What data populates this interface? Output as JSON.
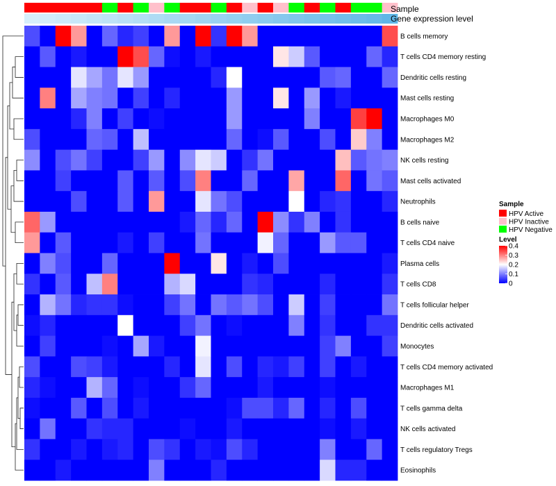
{
  "chart_data": {
    "type": "heatmap",
    "annotation_row_labels": [
      "Sample",
      "Gene expression level"
    ],
    "sample_group": [
      "HPV Active",
      "HPV Active",
      "HPV Active",
      "HPV Active",
      "HPV Active",
      "HPV Negative",
      "HPV Active",
      "HPV Negative",
      "HPV Inactive",
      "HPV Negative",
      "HPV Active",
      "HPV Active",
      "HPV Negative",
      "HPV Active",
      "HPV Inactive",
      "HPV Active",
      "HPV Inactive",
      "HPV Negative",
      "HPV Active",
      "HPV Negative",
      "HPV Active",
      "HPV Negative",
      "HPV Negative",
      "HPV Inactive"
    ],
    "expression_level": [
      0.02,
      0.06,
      0.1,
      0.14,
      0.18,
      0.22,
      0.26,
      0.3,
      0.34,
      0.38,
      0.42,
      0.46,
      0.5,
      0.54,
      0.58,
      0.62,
      0.66,
      0.7,
      0.74,
      0.78,
      0.82,
      0.86,
      0.9,
      0.96
    ],
    "rows": [
      "B cells memory",
      "T cells CD4 memory resting",
      "Dendritic cells resting",
      "Mast cells resting",
      "Macrophages M0",
      "Macrophages M2",
      "NK cells resting",
      "Mast cells activated",
      "Neutrophils",
      "B cells naive",
      "T cells CD4 naive",
      "Plasma cells",
      "T cells CD8",
      "T cells follicular helper",
      "Dendritic cells activated",
      "Monocytes",
      "T cells CD4 memory activated",
      "Macrophages M1",
      "T cells gamma delta",
      "NK cells activated",
      "T cells regulatory  Tregs",
      "Eosinophils"
    ],
    "values": [
      [
        0.06,
        0.0,
        0.4,
        0.28,
        0.0,
        0.08,
        0.03,
        0.05,
        0.0,
        0.28,
        0.0,
        0.4,
        0.04,
        0.4,
        0.28,
        0.0,
        0.0,
        0.0,
        0.0,
        0.0,
        0.0,
        0.0,
        0.0,
        0.34
      ],
      [
        0.0,
        0.07,
        0.0,
        0.02,
        0.0,
        0.0,
        0.4,
        0.34,
        0.08,
        0.01,
        0.0,
        0.02,
        0.0,
        0.0,
        0.0,
        0.0,
        0.22,
        0.16,
        0.07,
        0.0,
        0.0,
        0.0,
        0.08,
        0.03
      ],
      [
        0.0,
        0.0,
        0.0,
        0.18,
        0.13,
        0.09,
        0.18,
        0.12,
        0.0,
        0.0,
        0.0,
        0.0,
        0.03,
        0.2,
        0.0,
        0.0,
        0.0,
        0.0,
        0.0,
        0.07,
        0.08,
        0.0,
        0.0,
        0.08
      ],
      [
        0.0,
        0.3,
        0.0,
        0.13,
        0.1,
        0.09,
        0.0,
        0.05,
        0.0,
        0.03,
        0.0,
        0.0,
        0.0,
        0.12,
        0.0,
        0.0,
        0.22,
        0.0,
        0.12,
        0.0,
        0.02,
        0.0,
        0.0,
        0.0
      ],
      [
        0.0,
        0.0,
        0.0,
        0.03,
        0.1,
        0.0,
        0.05,
        0.0,
        0.01,
        0.0,
        0.0,
        0.0,
        0.0,
        0.12,
        0.0,
        0.0,
        0.0,
        0.0,
        0.1,
        0.0,
        0.0,
        0.35,
        0.4,
        0.0
      ],
      [
        0.06,
        0.0,
        0.0,
        0.0,
        0.08,
        0.07,
        0.0,
        0.15,
        0.0,
        0.0,
        0.0,
        0.0,
        0.0,
        0.08,
        0.0,
        0.01,
        0.07,
        0.0,
        0.0,
        0.06,
        0.0,
        0.24,
        0.1,
        0.0
      ],
      [
        0.11,
        0.0,
        0.06,
        0.09,
        0.05,
        0.0,
        0.0,
        0.05,
        0.12,
        0.0,
        0.11,
        0.18,
        0.16,
        0.0,
        0.04,
        0.09,
        0.0,
        0.0,
        0.0,
        0.0,
        0.25,
        0.07,
        0.09,
        0.1
      ],
      [
        0.0,
        0.0,
        0.05,
        0.0,
        0.0,
        0.0,
        0.07,
        0.0,
        0.07,
        0.0,
        0.06,
        0.3,
        0.0,
        0.0,
        0.08,
        0.0,
        0.0,
        0.27,
        0.0,
        0.0,
        0.32,
        0.0,
        0.09,
        0.07
      ],
      [
        0.0,
        0.0,
        0.0,
        0.06,
        0.0,
        0.0,
        0.07,
        0.0,
        0.28,
        0.0,
        0.0,
        0.18,
        0.09,
        0.06,
        0.0,
        0.0,
        0.0,
        0.2,
        0.0,
        0.03,
        0.04,
        0.0,
        0.0,
        0.03
      ],
      [
        0.32,
        0.12,
        0.0,
        0.0,
        0.0,
        0.0,
        0.0,
        0.0,
        0.0,
        0.0,
        0.02,
        0.08,
        0.03,
        0.08,
        0.0,
        0.4,
        0.11,
        0.04,
        0.1,
        0.0,
        0.04,
        0.0,
        0.0,
        0.0
      ],
      [
        0.28,
        0.0,
        0.07,
        0.0,
        0.0,
        0.0,
        0.02,
        0.0,
        0.05,
        0.0,
        0.0,
        0.09,
        0.0,
        0.0,
        0.0,
        0.19,
        0.08,
        0.0,
        0.0,
        0.12,
        0.07,
        0.07,
        0.0,
        0.0
      ],
      [
        0.0,
        0.1,
        0.06,
        0.0,
        0.0,
        0.08,
        0.0,
        0.0,
        0.0,
        0.4,
        0.0,
        0.0,
        0.22,
        0.0,
        0.02,
        0.0,
        0.06,
        0.0,
        0.0,
        0.0,
        0.0,
        0.0,
        0.0,
        0.02
      ],
      [
        0.04,
        0.0,
        0.07,
        0.0,
        0.15,
        0.3,
        0.0,
        0.0,
        0.0,
        0.14,
        0.17,
        0.0,
        0.0,
        0.0,
        0.04,
        0.03,
        0.0,
        0.0,
        0.0,
        0.03,
        0.0,
        0.0,
        0.0,
        0.04
      ],
      [
        0.0,
        0.14,
        0.09,
        0.03,
        0.04,
        0.04,
        0.01,
        0.0,
        0.0,
        0.05,
        0.09,
        0.0,
        0.09,
        0.07,
        0.09,
        0.06,
        0.0,
        0.16,
        0.0,
        0.05,
        0.0,
        0.0,
        0.0,
        0.09
      ],
      [
        0.01,
        0.03,
        0.0,
        0.0,
        0.0,
        0.0,
        0.2,
        0.0,
        0.0,
        0.0,
        0.05,
        0.09,
        0.0,
        0.01,
        0.0,
        0.0,
        0.0,
        0.1,
        0.0,
        0.04,
        0.0,
        0.0,
        0.04,
        0.04
      ],
      [
        0.0,
        0.05,
        0.0,
        0.0,
        0.0,
        0.01,
        0.0,
        0.13,
        0.02,
        0.0,
        0.0,
        0.19,
        0.0,
        0.0,
        0.0,
        0.0,
        0.0,
        0.0,
        0.0,
        0.05,
        0.1,
        0.0,
        0.0,
        0.05
      ],
      [
        0.06,
        0.0,
        0.0,
        0.06,
        0.05,
        0.02,
        0.0,
        0.0,
        0.0,
        0.03,
        0.0,
        0.18,
        0.0,
        0.06,
        0.0,
        0.03,
        0.02,
        0.05,
        0.0,
        0.05,
        0.0,
        0.02,
        0.0,
        0.0
      ],
      [
        0.03,
        0.01,
        0.0,
        0.0,
        0.14,
        0.08,
        0.0,
        0.01,
        0.0,
        0.0,
        0.04,
        0.08,
        0.0,
        0.0,
        0.0,
        0.02,
        0.0,
        0.0,
        0.0,
        0.01,
        0.0,
        0.0,
        0.0,
        0.0
      ],
      [
        0.01,
        0.0,
        0.0,
        0.07,
        0.0,
        0.06,
        0.0,
        0.02,
        0.0,
        0.0,
        0.0,
        0.0,
        0.0,
        0.01,
        0.06,
        0.06,
        0.03,
        0.08,
        0.0,
        0.03,
        0.0,
        0.06,
        0.0,
        0.0
      ],
      [
        0.0,
        0.09,
        0.0,
        0.0,
        0.04,
        0.03,
        0.03,
        0.0,
        0.0,
        0.0,
        0.01,
        0.0,
        0.0,
        0.02,
        0.0,
        0.0,
        0.0,
        0.0,
        0.0,
        0.01,
        0.0,
        0.02,
        0.0,
        0.0
      ],
      [
        0.04,
        0.0,
        0.0,
        0.02,
        0.0,
        0.02,
        0.03,
        0.0,
        0.06,
        0.04,
        0.0,
        0.02,
        0.01,
        0.06,
        0.03,
        0.0,
        0.0,
        0.0,
        0.0,
        0.1,
        0.0,
        0.0,
        0.08,
        0.0
      ],
      [
        0.0,
        0.0,
        0.02,
        0.0,
        0.0,
        0.0,
        0.0,
        0.0,
        0.1,
        0.0,
        0.0,
        0.0,
        0.03,
        0.0,
        0.0,
        0.0,
        0.0,
        0.0,
        0.0,
        0.17,
        0.03,
        0.03,
        0.0,
        0.0
      ]
    ],
    "legend": {
      "sample_title": "Sample",
      "sample_entries": [
        {
          "label": "HPV Active",
          "color": "#ff0000"
        },
        {
          "label": "HPV Inactive",
          "color": "#ffc0cb"
        },
        {
          "label": "HPV Negative",
          "color": "#00ff00"
        }
      ],
      "level_title": "Level",
      "level_ticks": [
        "0.4",
        "0.3",
        "0.2",
        "0.1",
        "0"
      ],
      "level_tick_values": [
        0.4,
        0.3,
        0.2,
        0.1,
        0
      ],
      "placement": "right"
    },
    "color_scale": {
      "min": 0,
      "max": 0.4,
      "low": "#0000ff",
      "mid": "#ffffff",
      "high": "#ff0000"
    },
    "expression_colors": {
      "low": "#daf0fb",
      "high": "#5ab4e6"
    }
  }
}
